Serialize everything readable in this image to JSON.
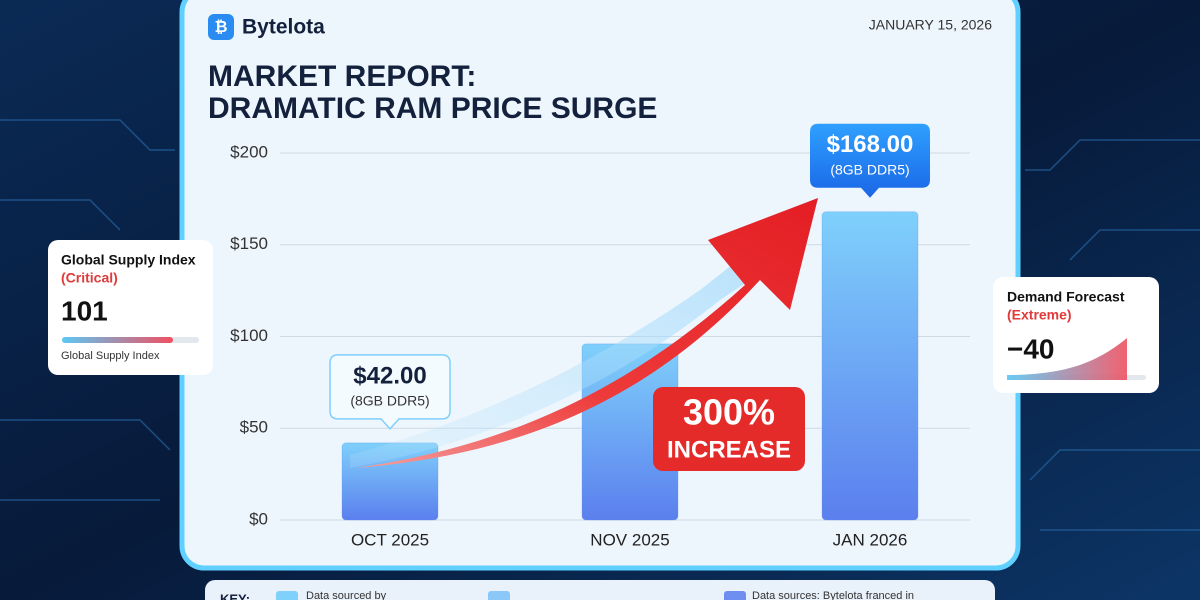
{
  "brand": "Bytelota",
  "date": "JANUARY 15, 2026",
  "title_lines": [
    "MARKET REPORT:",
    "DRAMATIC RAM PRICE SURGE"
  ],
  "chart_data": {
    "type": "bar",
    "categories": [
      "OCT 2025",
      "NOV 2025",
      "JAN 2026"
    ],
    "values": [
      42,
      96,
      168
    ],
    "value_labels": [
      "$42.00",
      null,
      "$168.00"
    ],
    "value_label_notes": [
      "(8GB DDR5)",
      null,
      "(8GB DDR5)"
    ],
    "color": "#5b95f0",
    "ylim": [
      0,
      200
    ],
    "yticks": [
      {
        "value": 0,
        "label": "$0"
      },
      {
        "value": 50,
        "label": "$50"
      },
      {
        "value": 100,
        "label": "$100"
      },
      {
        "value": 150,
        "label": "$150"
      },
      {
        "value": 200,
        "label": "$200"
      }
    ],
    "grid": true,
    "annotation": [
      "300%",
      "INCREASE"
    ]
  },
  "supply_card": {
    "title": "Global Supply Index",
    "status": "(Critical)",
    "value": "101",
    "caption": "Global Supply Index"
  },
  "demand_card": {
    "title": "Demand Forecast",
    "status": "(Extreme)",
    "value": "−40"
  },
  "key": {
    "label": "KEY:",
    "items": [
      "Data sourced by",
      "Data sources: Bytelota franced in"
    ]
  }
}
